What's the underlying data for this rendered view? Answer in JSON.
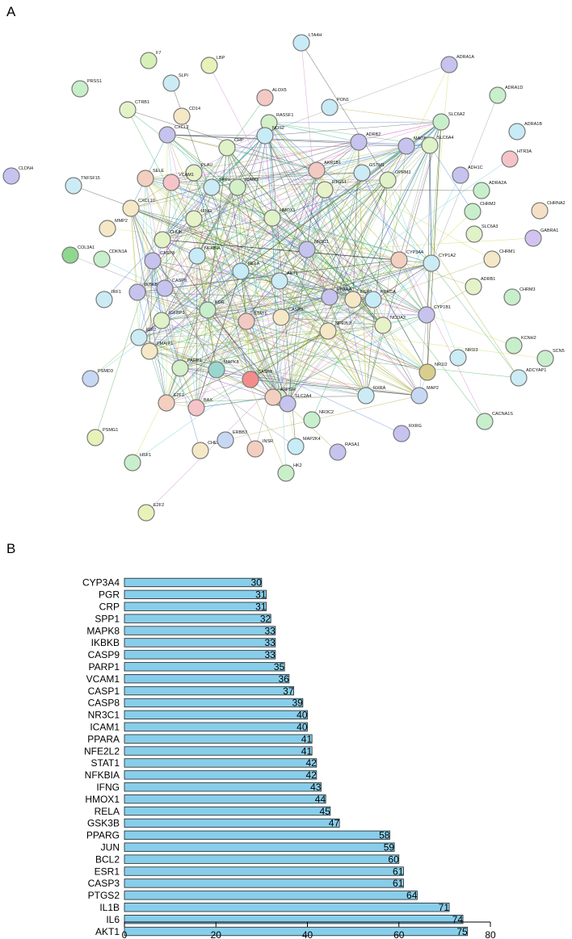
{
  "panels": {
    "a_label": "A",
    "b_label": "B"
  },
  "network": {
    "nodes": [
      {
        "label": "LTA4H",
        "color": "#c7ecf7"
      },
      {
        "label": "ADRA1A",
        "color": "#c6c3ef"
      },
      {
        "label": "F7",
        "color": "#d6f0b8"
      },
      {
        "label": "LBP",
        "color": "#e6f2b8"
      },
      {
        "label": "SLPI",
        "color": "#cbecf5"
      },
      {
        "label": "PRSS1",
        "color": "#c8efc8"
      },
      {
        "label": "ALOX5",
        "color": "#f3c9c3"
      },
      {
        "label": "CTRB1",
        "color": "#e3f3c7"
      },
      {
        "label": "CD14",
        "color": "#f5e8c6"
      },
      {
        "label": "PON1",
        "color": "#c8eaf5"
      },
      {
        "label": "ADRA1D",
        "color": "#c8efcb"
      },
      {
        "label": "RASSF1",
        "color": "#d3f0c8"
      },
      {
        "label": "CXCL2",
        "color": "#c6c3ef"
      },
      {
        "label": "CRP",
        "color": "#dff2c8"
      },
      {
        "label": "ADRB2",
        "color": "#c6c3ef"
      },
      {
        "label": "SLC6A2",
        "color": "#c8efcb"
      },
      {
        "label": "ADRA1B",
        "color": "#c7ecf7"
      },
      {
        "label": "NOS2",
        "color": "#c7ecf7"
      },
      {
        "label": "MAOB",
        "color": "#c6c3ef"
      },
      {
        "label": "HTR3A",
        "color": "#f5c4c8"
      },
      {
        "label": "CLDN4",
        "color": "#c6c3ef"
      },
      {
        "label": "TNFSF15",
        "color": "#cbecf5"
      },
      {
        "label": "SELE",
        "color": "#f3cfc0"
      },
      {
        "label": "PLAU",
        "color": "#e6f2c8"
      },
      {
        "label": "AKR1B1",
        "color": "#f3c9c3"
      },
      {
        "label": "GSTM1",
        "color": "#cbecf5"
      },
      {
        "label": "SLC6A4",
        "color": "#dff2c8"
      },
      {
        "label": "ADH1C",
        "color": "#c6c3ef"
      },
      {
        "label": "VCAM1",
        "color": "#f5c4c8"
      },
      {
        "label": "SPP1",
        "color": "#cbecf5"
      },
      {
        "label": "ICAM1",
        "color": "#d3f0c8"
      },
      {
        "label": "PTGS1",
        "color": "#e6f2c8"
      },
      {
        "label": "OPRM1",
        "color": "#dff2c8"
      },
      {
        "label": "ADRA2A",
        "color": "#c8efcb"
      },
      {
        "label": "CXCL10",
        "color": "#f5e8c6"
      },
      {
        "label": "IFNG",
        "color": "#e6f2c8"
      },
      {
        "label": "HMOX1",
        "color": "#dff2c8"
      },
      {
        "label": "CHRM2",
        "color": "#c8efcb"
      },
      {
        "label": "CHRNA2",
        "color": "#f5e0c6"
      },
      {
        "label": "MMP2",
        "color": "#f5e8c6"
      },
      {
        "label": "CHUK",
        "color": "#e3f3c7"
      },
      {
        "label": "SLC6A3",
        "color": "#dff2c8"
      },
      {
        "label": "GABRA1",
        "color": "#d3c3f3"
      },
      {
        "label": "COL3A1",
        "color": "#8fd68f"
      },
      {
        "label": "CDKN1A",
        "color": "#c8efcb"
      },
      {
        "label": "CASP8",
        "color": "#c6c3ef"
      },
      {
        "label": "NFKBIA",
        "color": "#c7ecf7"
      },
      {
        "label": "NR3C1",
        "color": "#c6c3ef"
      },
      {
        "label": "CYP3A4",
        "color": "#f3cfc0"
      },
      {
        "label": "CYP1A2",
        "color": "#cbecf5"
      },
      {
        "label": "CHRM1",
        "color": "#f5e8c6"
      },
      {
        "label": "IRF1",
        "color": "#cbecf5"
      },
      {
        "label": "IKBKB",
        "color": "#c6c3ef"
      },
      {
        "label": "CASP9",
        "color": "#c6c3ef"
      },
      {
        "label": "RELA",
        "color": "#c7ecf7"
      },
      {
        "label": "AKT1",
        "color": "#cbecf5"
      },
      {
        "label": "PPARA",
        "color": "#c6c3ef"
      },
      {
        "label": "ADRB1",
        "color": "#e3f3c7"
      },
      {
        "label": "CHRM3",
        "color": "#c8efcb"
      },
      {
        "label": "CYP1B1",
        "color": "#c6c3ef"
      },
      {
        "label": "IGFBP3",
        "color": "#dff2c8"
      },
      {
        "label": "KDR",
        "color": "#c8efcb"
      },
      {
        "label": "STAT1",
        "color": "#f3c9c3"
      },
      {
        "label": "CASP3",
        "color": "#f5e8c6"
      },
      {
        "label": "ESR2",
        "color": "#f5e8c6"
      },
      {
        "label": "PRKCA",
        "color": "#c7ecf7"
      },
      {
        "label": "IGF2",
        "color": "#cbecf5"
      },
      {
        "label": "PMAIP1",
        "color": "#f5e8c6"
      },
      {
        "label": "NFE2L2",
        "color": "#f5e8c6"
      },
      {
        "label": "NCOA2",
        "color": "#e6f2c8"
      },
      {
        "label": "KCNH2",
        "color": "#c8efcb"
      },
      {
        "label": "PSMD3",
        "color": "#c7d8f5"
      },
      {
        "label": "PARP1",
        "color": "#d3f0c8"
      },
      {
        "label": "MAPK8",
        "color": "#9ad6d0"
      },
      {
        "label": "CASP8",
        "color": "#f58c8c"
      },
      {
        "label": "PGR",
        "color": "#d3f0c8"
      },
      {
        "label": "RXRA",
        "color": "#cbecf5"
      },
      {
        "label": "NR1I2",
        "color": "#d8cf8c"
      },
      {
        "label": "NR1I3",
        "color": "#cbecf5"
      },
      {
        "label": "SCN5",
        "color": "#c8efcb"
      },
      {
        "label": "E2F1",
        "color": "#f3cfc0"
      },
      {
        "label": "BAX",
        "color": "#f5c4c8"
      },
      {
        "label": "SLC2A4",
        "color": "#c6c3ef"
      },
      {
        "label": "AR",
        "color": "#f3cfc0"
      },
      {
        "label": "MAP2",
        "color": "#c7d8f5"
      },
      {
        "label": "ADCYAP1",
        "color": "#cbecf5"
      },
      {
        "label": "PSMG1",
        "color": "#e6f2b8"
      },
      {
        "label": "CHEK",
        "color": "#f5e8c6"
      },
      {
        "label": "ERBB3",
        "color": "#c7d8f5"
      },
      {
        "label": "INSR",
        "color": "#f3cfc0"
      },
      {
        "label": "NR3C2",
        "color": "#c8efcb"
      },
      {
        "label": "RXRG",
        "color": "#c6c3ef"
      },
      {
        "label": "CACNA1S",
        "color": "#c8efcb"
      },
      {
        "label": "HSF1",
        "color": "#c8efcb"
      },
      {
        "label": "MAP2K4",
        "color": "#c7ecf7"
      },
      {
        "label": "RASA1",
        "color": "#c6c3ef"
      },
      {
        "label": "HK2",
        "color": "#c8efc8"
      },
      {
        "label": "E2F2",
        "color": "#e6f2b8"
      }
    ]
  },
  "chart_data": {
    "type": "bar",
    "orientation": "horizontal",
    "categories": [
      "CYP3A4",
      "PGR",
      "CRP",
      "SPP1",
      "MAPK8",
      "IKBKB",
      "CASP9",
      "PARP1",
      "VCAM1",
      "CASP1",
      "CASP8",
      "NR3C1",
      "ICAM1",
      "PPARA",
      "NFE2L2",
      "STAT1",
      "NFKBIA",
      "IFNG",
      "HMOX1",
      "RELA",
      "GSK3B",
      "PPARG",
      "JUN",
      "BCL2",
      "ESR1",
      "CASP3",
      "PTGS2",
      "IL1B",
      "IL6",
      "AKT1"
    ],
    "values": [
      30,
      31,
      31,
      32,
      33,
      33,
      33,
      35,
      36,
      37,
      39,
      40,
      40,
      41,
      41,
      42,
      42,
      43,
      44,
      45,
      47,
      58,
      59,
      60,
      61,
      61,
      64,
      71,
      74,
      75
    ],
    "xlim": [
      0,
      80
    ],
    "xticks": [
      0,
      20,
      40,
      60,
      80
    ],
    "title": "",
    "xlabel": "",
    "ylabel": "",
    "bar_color": "#87ceeb",
    "grid": false,
    "legend": "none"
  }
}
